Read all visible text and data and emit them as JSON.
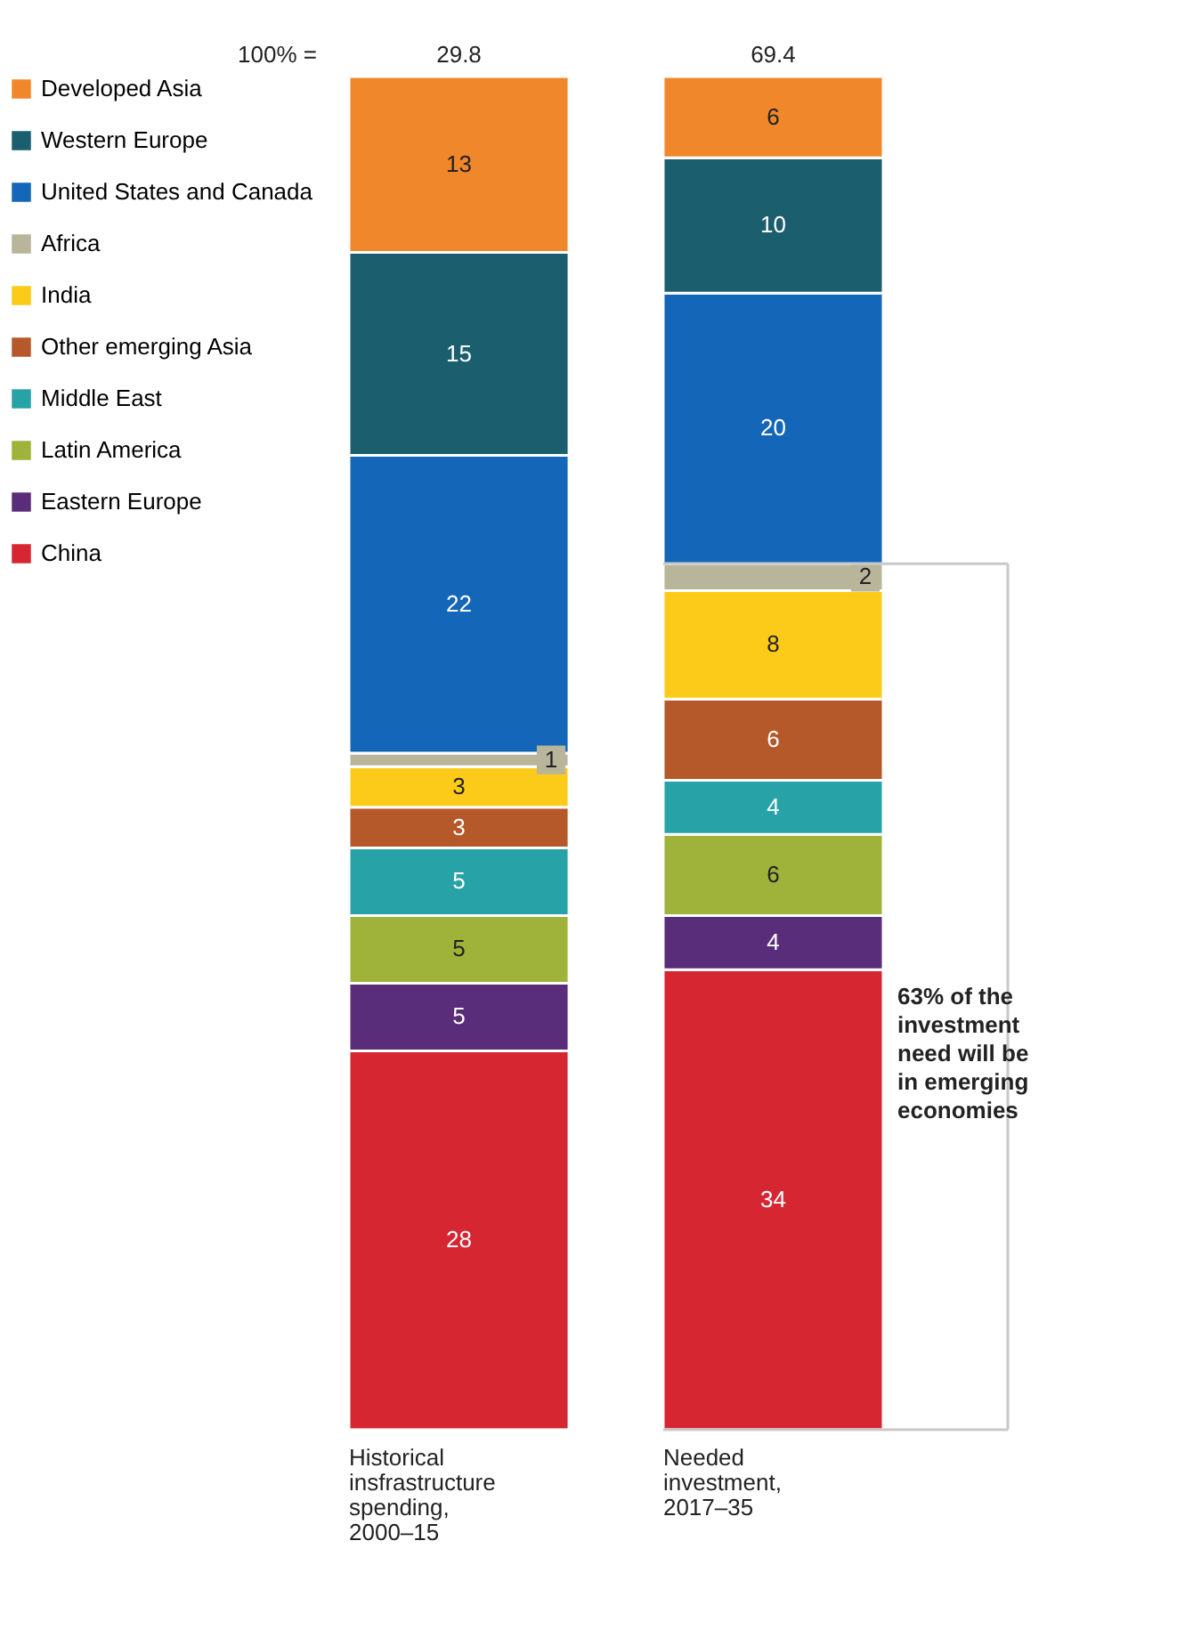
{
  "chart_data": {
    "type": "bar",
    "stacked": true,
    "data_labels": true,
    "legend": "left",
    "categories": [
      "Historical insfrastructure spending, 2000–15",
      "Needed investment, 2017–35"
    ],
    "annotations": [
      "100% =",
      "29.8",
      "69.4",
      "63% of the investment need will be in emerging economies"
    ],
    "ref_lines": [
      {
        "axis": "y",
        "value": 64,
        "color": "#c8c8c8"
      },
      {
        "axis": "y",
        "value": 0,
        "color": "#c8c8c8"
      }
    ],
    "series": [
      {
        "name": "China",
        "color": "#d62632",
        "values": [
          28,
          34
        ]
      },
      {
        "name": "Eastern Europe",
        "color": "#5a2d7a",
        "values": [
          5,
          4
        ]
      },
      {
        "name": "Latin America",
        "color": "#9fb23a",
        "values": [
          5,
          6
        ]
      },
      {
        "name": "Middle East",
        "color": "#27a3a8",
        "values": [
          5,
          4
        ]
      },
      {
        "name": "Other emerging Asia",
        "color": "#b5592a",
        "values": [
          3,
          6
        ]
      },
      {
        "name": "India",
        "color": "#fccb1a",
        "values": [
          3,
          8
        ]
      },
      {
        "name": "Africa",
        "color": "#b8b59a",
        "values": [
          1,
          2
        ]
      },
      {
        "name": "United States and Canada",
        "color": "#1466b8",
        "values": [
          22,
          20
        ]
      },
      {
        "name": "Western Europe",
        "color": "#1b5e6e",
        "values": [
          15,
          10
        ]
      },
      {
        "name": "Developed Asia",
        "color": "#f0872a",
        "values": [
          13,
          6
        ]
      }
    ]
  }
}
